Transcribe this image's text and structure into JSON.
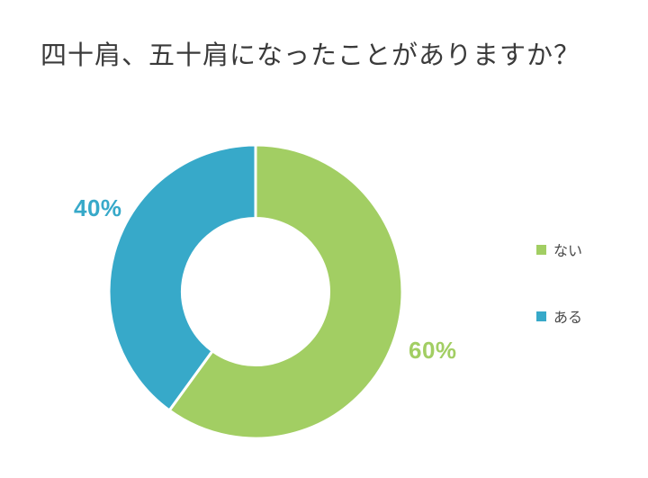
{
  "title": "四十肩、五十肩になったことがありますか？",
  "chart_data": {
    "type": "pie",
    "subtype": "donut",
    "title": "四十肩、五十肩になったことがありますか？",
    "categories": [
      "ない",
      "ある"
    ],
    "values": [
      60,
      40
    ],
    "unit": "%",
    "labels": [
      "60%",
      "40%"
    ],
    "colors": [
      "#a2ce63",
      "#37a9c9"
    ],
    "start_angle_deg": 0,
    "direction": "clockwise",
    "inner_radius_ratio": 0.5,
    "legend_position": "right",
    "separator_color": "#ffffff"
  },
  "legend": {
    "items": [
      {
        "label": "ない",
        "color": "#a2ce63"
      },
      {
        "label": "ある",
        "color": "#37a9c9"
      }
    ]
  }
}
